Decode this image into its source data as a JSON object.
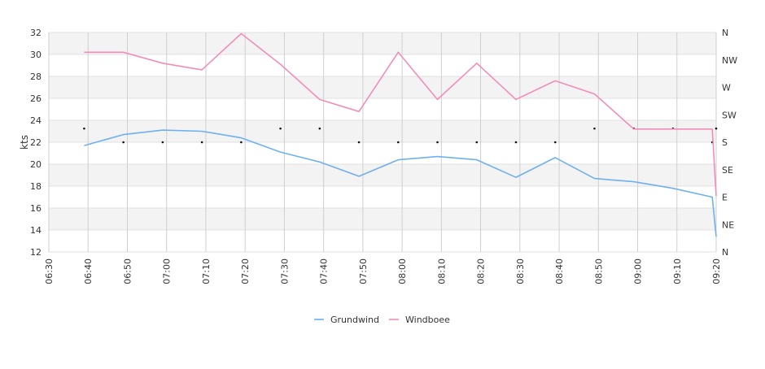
{
  "chart_data": {
    "type": "line",
    "ylabel": "kts",
    "ylim": [
      12,
      32
    ],
    "yticks": [
      12,
      14,
      16,
      18,
      20,
      22,
      24,
      26,
      28,
      30,
      32
    ],
    "xlim": [
      "06:30",
      "09:20"
    ],
    "xticks": [
      "06:30",
      "06:40",
      "06:50",
      "07:00",
      "07:10",
      "07:20",
      "07:30",
      "07:40",
      "07:50",
      "08:00",
      "08:10",
      "08:20",
      "08:30",
      "08:40",
      "08:50",
      "09:00",
      "09:10",
      "09:20"
    ],
    "y2ticks": [
      "N",
      "NE",
      "E",
      "SE",
      "S",
      "SW",
      "W",
      "NW",
      "N"
    ],
    "grid": "horizontal bands and vertical lines",
    "legend": "bottom-center",
    "series": [
      {
        "name": "Grundwind",
        "color": "#6fb0ee",
        "x": [
          "06:39",
          "06:49",
          "06:59",
          "07:09",
          "07:19",
          "07:29",
          "07:39",
          "07:49",
          "07:59",
          "08:09",
          "08:19",
          "08:29",
          "08:39",
          "08:49",
          "08:59",
          "09:09",
          "09:19",
          "09:20"
        ],
        "values": [
          21.7,
          22.7,
          23.1,
          23.0,
          22.4,
          21.1,
          20.2,
          18.9,
          20.4,
          20.7,
          20.4,
          18.8,
          20.6,
          18.7,
          18.4,
          17.8,
          17.0,
          13.4
        ]
      },
      {
        "name": "Windboee",
        "color": "#f28db8",
        "x": [
          "06:39",
          "06:49",
          "06:59",
          "07:09",
          "07:19",
          "07:29",
          "07:39",
          "07:49",
          "07:59",
          "08:09",
          "08:19",
          "08:29",
          "08:39",
          "08:49",
          "08:59",
          "09:09",
          "09:19",
          "09:20"
        ],
        "values": [
          30.2,
          30.2,
          29.2,
          28.6,
          31.9,
          29.1,
          25.9,
          24.8,
          30.2,
          25.9,
          29.2,
          25.9,
          27.6,
          26.4,
          23.2,
          23.2,
          23.2,
          17.1
        ]
      }
    ],
    "direction_markers": {
      "x": [
        "06:39",
        "06:49",
        "06:59",
        "07:09",
        "07:19",
        "07:29",
        "07:39",
        "07:49",
        "07:59",
        "08:09",
        "08:19",
        "08:29",
        "08:39",
        "08:49",
        "08:59",
        "09:09",
        "09:19",
        "09:20"
      ],
      "direction": [
        "SSW",
        "S",
        "S",
        "S",
        "S",
        "SSW",
        "SSW",
        "S",
        "S",
        "S",
        "S",
        "S",
        "S",
        "SSW",
        "SSW",
        "SSW",
        "S",
        "SSW"
      ]
    }
  }
}
